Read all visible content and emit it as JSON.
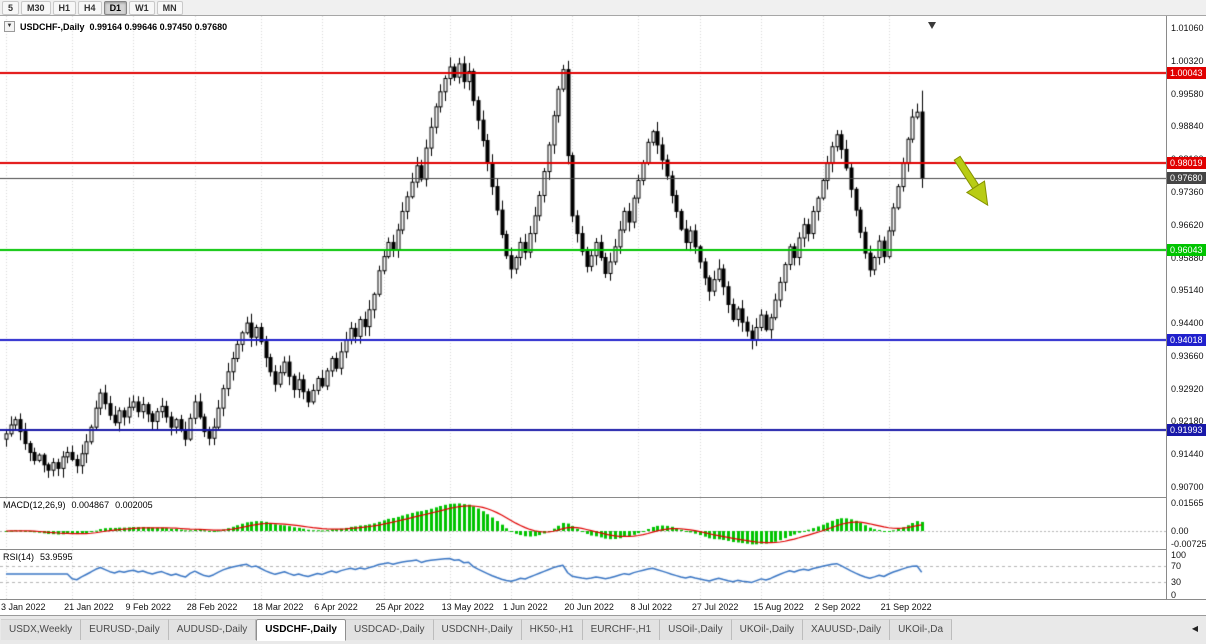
{
  "toolbar": {
    "timeframes": [
      "5",
      "M30",
      "H1",
      "H4",
      "D1",
      "W1",
      "MN"
    ],
    "active": "D1"
  },
  "chart": {
    "symbol_label": "USDCHF-,Daily",
    "ohlc_text": "0.99164 0.99646 0.97450 0.97680",
    "dropdown_icon": "▼"
  },
  "chart_data": {
    "type": "candlestick",
    "symbol": "USDCHF",
    "period": "Daily",
    "y_axis": {
      "top": 1.0106,
      "bottom": 0.907,
      "step": 0.0074,
      "labels": [
        "1.01060",
        "1.00320",
        "0.99580",
        "0.98840",
        "0.98100",
        "0.97360",
        "0.96620",
        "0.95880",
        "0.95140",
        "0.94400",
        "0.93660",
        "0.92920",
        "0.92180",
        "0.91440",
        "0.90700"
      ]
    },
    "x_axis": {
      "tick_days": [
        1,
        15,
        28,
        41,
        55,
        68,
        81,
        95,
        108,
        121,
        135,
        148,
        161,
        174,
        188
      ],
      "labels": [
        "3 Jan 2022",
        "21 Jan 2022",
        "9 Feb 2022",
        "28 Feb 2022",
        "18 Mar 2022",
        "6 Apr 2022",
        "25 Apr 2022",
        "13 May 2022",
        "1 Jun 2022",
        "20 Jun 2022",
        "8 Jul 2022",
        "27 Jul 2022",
        "15 Aug 2022",
        "2 Sep 2022",
        "21 Sep 2022"
      ]
    },
    "closes": [
      0.919,
      0.921,
      0.9222,
      0.9195,
      0.9168,
      0.9148,
      0.913,
      0.9142,
      0.912,
      0.9108,
      0.9125,
      0.9112,
      0.9138,
      0.9148,
      0.9132,
      0.9118,
      0.9145,
      0.9172,
      0.9205,
      0.9248,
      0.9282,
      0.9258,
      0.9232,
      0.9215,
      0.9242,
      0.9228,
      0.925,
      0.9262,
      0.924,
      0.9256,
      0.9235,
      0.9218,
      0.924,
      0.9252,
      0.9228,
      0.9205,
      0.9222,
      0.9198,
      0.9178,
      0.9225,
      0.9262,
      0.9228,
      0.9195,
      0.918,
      0.9205,
      0.9248,
      0.9292,
      0.933,
      0.936,
      0.9392,
      0.9418,
      0.944,
      0.9408,
      0.943,
      0.9398,
      0.9362,
      0.933,
      0.9302,
      0.9328,
      0.9352,
      0.932,
      0.929,
      0.9312,
      0.9285,
      0.9262,
      0.9288,
      0.9315,
      0.9298,
      0.9332,
      0.936,
      0.9338,
      0.9375,
      0.9402,
      0.9428,
      0.941,
      0.9448,
      0.9432,
      0.947,
      0.9505,
      0.9558,
      0.959,
      0.9622,
      0.9605,
      0.965,
      0.9692,
      0.9725,
      0.9758,
      0.9795,
      0.9765,
      0.9835,
      0.9882,
      0.9928,
      0.9962,
      0.9992,
      1.0018,
      0.9995,
      1.0025,
      0.9985,
      1.0008,
      0.9942,
      0.9898,
      0.9852,
      0.9802,
      0.9748,
      0.9695,
      0.964,
      0.9592,
      0.9562,
      0.9588,
      0.9622,
      0.96,
      0.9642,
      0.9682,
      0.9728,
      0.9782,
      0.9842,
      0.9908,
      0.9968,
      1.0012,
      0.9818,
      0.9682,
      0.9642,
      0.9602,
      0.9568,
      0.9592,
      0.9622,
      0.9588,
      0.9552,
      0.9578,
      0.9612,
      0.965,
      0.9692,
      0.9668,
      0.9722,
      0.9762,
      0.9802,
      0.9848,
      0.9872,
      0.9842,
      0.9808,
      0.9772,
      0.9728,
      0.9692,
      0.9652,
      0.9622,
      0.9648,
      0.9612,
      0.9578,
      0.9542,
      0.9512,
      0.9538,
      0.9562,
      0.9522,
      0.9482,
      0.9448,
      0.9472,
      0.9442,
      0.9422,
      0.9402,
      0.943,
      0.9458,
      0.9425,
      0.9452,
      0.9492,
      0.9532,
      0.9572,
      0.9612,
      0.9588,
      0.9632,
      0.9662,
      0.9642,
      0.9692,
      0.9722,
      0.9762,
      0.98,
      0.9838,
      0.9865,
      0.9832,
      0.979,
      0.9742,
      0.9695,
      0.9645,
      0.9598,
      0.956,
      0.9588,
      0.9625,
      0.959,
      0.9648,
      0.97,
      0.9748,
      0.98,
      0.9855,
      0.9905,
      0.9916,
      0.9768
    ],
    "last_candle": {
      "open": 0.99164,
      "high": 0.99646,
      "low": 0.9745,
      "close": 0.9768
    },
    "levels": [
      {
        "price": 1.00043,
        "label": "1.00043",
        "color": "#e00000",
        "line_width": 2
      },
      {
        "price": 0.98019,
        "label": "0.98019",
        "color": "#e00000",
        "line_width": 2
      },
      {
        "price": 0.9768,
        "label": "0.97680",
        "color": "#454545",
        "line_width": 1,
        "role": "bid"
      },
      {
        "price": 0.96043,
        "label": "0.96043",
        "color": "#00c400",
        "line_width": 2
      },
      {
        "price": 0.94018,
        "label": "0.94018",
        "color": "#2020cc",
        "line_width": 2
      },
      {
        "price": 0.91993,
        "label": "0.91993",
        "color": "#1818a8",
        "line_width": 2
      }
    ],
    "candle_colors": {
      "bull_fill": "#ffffff",
      "bear_fill": "#000000",
      "outline": "#000000",
      "wick": "#000000"
    },
    "grid_color": "#d8d8d8",
    "macd": {
      "name": "MACD(12,26,9)",
      "value_main": "0.004867",
      "value_signal": "0.002005",
      "fast": 12,
      "slow": 26,
      "signal": 9,
      "axis_labels": [
        "0.01565",
        "0.00",
        "-0.00725"
      ],
      "axis_values": [
        0.01565,
        0,
        -0.00725
      ],
      "histogram_color": "#00c400",
      "signal_color": "#e00000"
    },
    "rsi": {
      "name": "RSI(14)",
      "value": "53.9595",
      "period": 14,
      "axis_labels": [
        "100",
        "70",
        "30",
        "0"
      ],
      "axis_values": [
        100,
        70,
        30,
        0
      ],
      "level_lines": [
        70,
        30
      ],
      "line_color": "#3a76c4"
    },
    "drawing": {
      "type": "down-right-arrow",
      "fill": "#b8cc14",
      "outline": "#859200"
    }
  },
  "tabs": {
    "items": [
      "USDX,Weekly",
      "EURUSD-,Daily",
      "AUDUSD-,Daily",
      "USDCHF-,Daily",
      "USDCAD-,Daily",
      "USDCNH-,Daily",
      "HK50-,H1",
      "EURCHF-,H1",
      "USOil-,Daily",
      "UKOil-,Daily",
      "XAUUSD-,Daily",
      "UKOil-,Da"
    ],
    "active_index": 3,
    "scroll_left": "◀"
  }
}
